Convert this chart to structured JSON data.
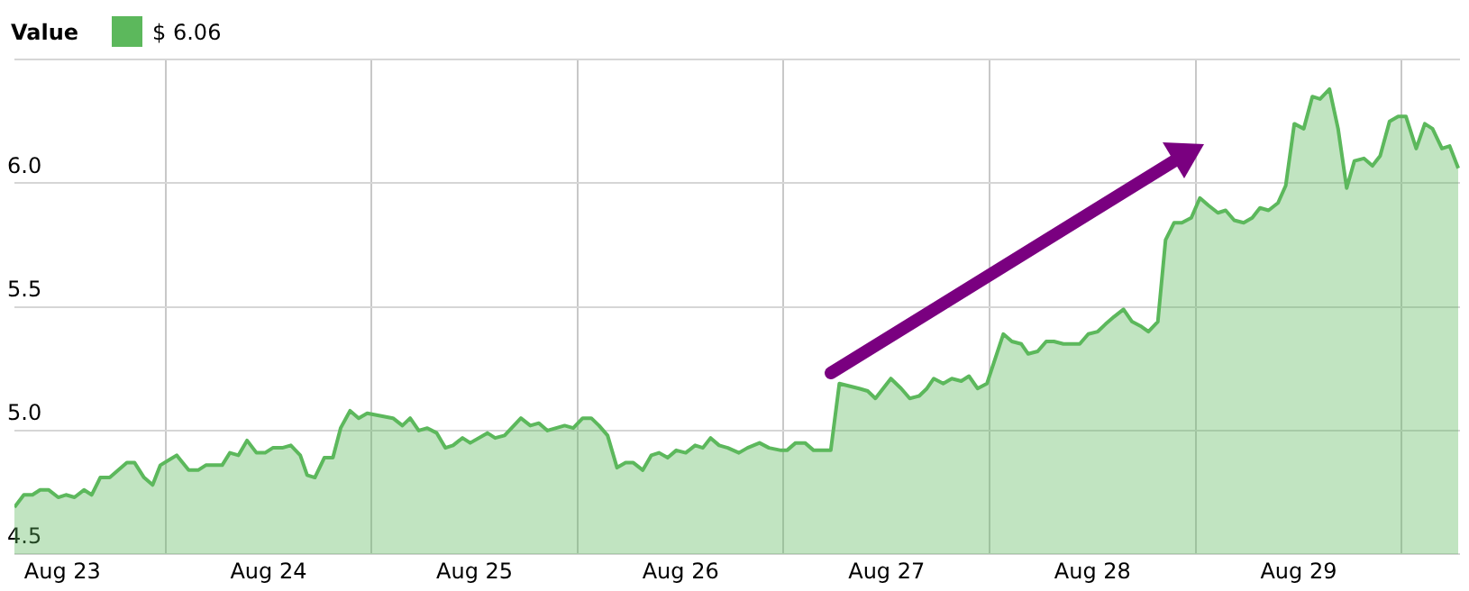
{
  "chart_data": {
    "type": "area",
    "legend_title": "Value",
    "legend": "top left",
    "grid": true,
    "marker": "none",
    "xlim": [
      "--08-23T06:24",
      "--08-30T06:48"
    ],
    "ylim": [
      4.5,
      6.5
    ],
    "yticks": [
      {
        "value": 4.5,
        "label": "4.5"
      },
      {
        "value": 5,
        "label": "5.0"
      },
      {
        "value": 5.5,
        "label": "5.5"
      },
      {
        "value": 6,
        "label": "6.0"
      },
      {
        "value": 6.5,
        "label": null
      }
    ],
    "xticks": [
      {
        "value": "--08-23T12:00",
        "label": "Aug 23"
      },
      {
        "value": "--08-24T00:00",
        "label": null
      },
      {
        "value": "--08-24T12:00",
        "label": "Aug 24"
      },
      {
        "value": "--08-25T00:00",
        "label": null
      },
      {
        "value": "--08-25T12:00",
        "label": "Aug 25"
      },
      {
        "value": "--08-26T00:00",
        "label": null
      },
      {
        "value": "--08-26T12:00",
        "label": "Aug 26"
      },
      {
        "value": "--08-27T00:00",
        "label": null
      },
      {
        "value": "--08-27T12:00",
        "label": "Aug 27"
      },
      {
        "value": "--08-28T00:00",
        "label": null
      },
      {
        "value": "--08-28T12:00",
        "label": "Aug 28"
      },
      {
        "value": "--08-29T00:00",
        "label": null
      },
      {
        "value": "--08-29T12:00",
        "label": "Aug 29"
      },
      {
        "value": "--08-30T00:00",
        "label": null
      }
    ],
    "x": [
      "--08-23T06:24",
      "--08-23T07:30",
      "--08-23T08:30",
      "--08-23T09:24",
      "--08-23T10:24",
      "--08-23T11:30",
      "--08-23T12:24",
      "--08-23T13:24",
      "--08-23T14:30",
      "--08-23T15:24",
      "--08-23T16:24",
      "--08-23T17:30",
      "--08-23T18:30",
      "--08-23T19:30",
      "--08-23T20:24",
      "--08-23T21:30",
      "--08-23T22:30",
      "--08-23T23:24",
      "--08-24T01:18",
      "--08-24T02:42",
      "--08-24T03:48",
      "--08-24T04:42",
      "--08-24T06:36",
      "--08-24T07:30",
      "--08-24T08:30",
      "--08-24T09:30",
      "--08-24T10:36",
      "--08-24T11:36",
      "--08-24T12:30",
      "--08-24T13:36",
      "--08-24T14:36",
      "--08-24T15:42",
      "--08-24T16:30",
      "--08-24T17:24",
      "--08-24T18:30",
      "--08-24T19:30",
      "--08-24T20:24",
      "--08-24T21:30",
      "--08-24T22:30",
      "--08-24T23:30",
      "--08-25T02:30",
      "--08-25T03:36",
      "--08-25T04:30",
      "--08-25T05:30",
      "--08-25T06:30",
      "--08-25T07:36",
      "--08-25T08:36",
      "--08-25T09:30",
      "--08-25T10:36",
      "--08-25T11:30",
      "--08-25T13:30",
      "--08-25T14:24",
      "--08-25T15:30",
      "--08-25T17:24",
      "--08-25T18:30",
      "--08-25T19:30",
      "--08-25T20:30",
      "--08-25T22:30",
      "--08-25T23:30",
      "--08-26T00:36",
      "--08-26T01:36",
      "--08-26T02:30",
      "--08-26T03:30",
      "--08-26T04:36",
      "--08-26T05:36",
      "--08-26T06:30",
      "--08-26T07:36",
      "--08-26T08:36",
      "--08-26T09:30",
      "--08-26T10:30",
      "--08-26T11:30",
      "--08-26T12:36",
      "--08-26T13:42",
      "--08-26T14:36",
      "--08-26T15:30",
      "--08-26T16:30",
      "--08-26T17:30",
      "--08-26T18:48",
      "--08-26T19:48",
      "--08-26T21:12",
      "--08-26T22:18",
      "--08-26T23:42",
      "--08-27T00:24",
      "--08-27T01:24",
      "--08-27T02:30",
      "--08-27T03:30",
      "--08-27T05:30",
      "--08-27T06:30",
      "--08-27T08:48",
      "--08-27T09:48",
      "--08-27T10:42",
      "--08-27T11:36",
      "--08-27T12:30",
      "--08-27T13:42",
      "--08-27T14:42",
      "--08-27T15:48",
      "--08-27T16:42",
      "--08-27T17:30",
      "--08-27T18:36",
      "--08-27T19:36",
      "--08-27T20:42",
      "--08-27T21:36",
      "--08-27T22:36",
      "--08-27T23:42",
      "--08-28T01:36",
      "--08-28T02:36",
      "--08-28T03:42",
      "--08-28T04:30",
      "--08-28T05:36",
      "--08-28T06:36",
      "--08-28T07:30",
      "--08-28T08:36",
      "--08-28T10:30",
      "--08-28T11:30",
      "--08-28T12:36",
      "--08-28T13:30",
      "--08-28T14:30",
      "--08-28T15:36",
      "--08-28T16:36",
      "--08-28T17:42",
      "--08-28T18:30",
      "--08-28T19:36",
      "--08-28T20:30",
      "--08-28T21:30",
      "--08-28T22:24",
      "--08-28T23:30",
      "--08-29T00:30",
      "--08-29T01:30",
      "--08-29T02:36",
      "--08-29T03:30",
      "--08-29T04:30",
      "--08-29T05:36",
      "--08-29T06:36",
      "--08-29T07:30",
      "--08-29T08:30",
      "--08-29T09:36",
      "--08-29T10:30",
      "--08-29T11:30",
      "--08-29T12:36",
      "--08-29T13:36",
      "--08-29T14:30",
      "--08-29T15:36",
      "--08-29T16:36",
      "--08-29T17:36",
      "--08-29T18:30",
      "--08-29T19:36",
      "--08-29T20:36",
      "--08-29T21:30",
      "--08-29T22:36",
      "--08-29T23:36",
      "--08-30T00:30",
      "--08-30T01:42",
      "--08-30T02:42",
      "--08-30T03:36",
      "--08-30T04:42",
      "--08-30T05:36",
      "--08-30T06:36"
    ],
    "series": [
      {
        "name": "$ 6.06",
        "color": "#5cb85c",
        "values": [
          4.69,
          4.74,
          4.74,
          4.76,
          4.76,
          4.73,
          4.74,
          4.73,
          4.76,
          4.74,
          4.81,
          4.81,
          4.84,
          4.87,
          4.87,
          4.81,
          4.78,
          4.86,
          4.9,
          4.84,
          4.84,
          4.86,
          4.86,
          4.91,
          4.9,
          4.96,
          4.91,
          4.91,
          4.93,
          4.93,
          4.94,
          4.9,
          4.82,
          4.81,
          4.89,
          4.89,
          5.01,
          5.08,
          5.05,
          5.07,
          5.05,
          5.02,
          5.05,
          5.0,
          5.01,
          4.99,
          4.93,
          4.94,
          4.97,
          4.95,
          4.99,
          4.97,
          4.98,
          5.05,
          5.02,
          5.03,
          5.0,
          5.02,
          5.01,
          5.05,
          5.05,
          5.02,
          4.98,
          4.85,
          4.87,
          4.87,
          4.84,
          4.9,
          4.91,
          4.89,
          4.92,
          4.91,
          4.94,
          4.93,
          4.97,
          4.94,
          4.93,
          4.91,
          4.93,
          4.95,
          4.93,
          4.92,
          4.92,
          4.95,
          4.95,
          4.92,
          4.92,
          5.19,
          5.17,
          5.16,
          5.13,
          5.17,
          5.21,
          5.17,
          5.13,
          5.14,
          5.17,
          5.21,
          5.19,
          5.21,
          5.2,
          5.22,
          5.17,
          5.19,
          5.39,
          5.36,
          5.35,
          5.31,
          5.32,
          5.36,
          5.36,
          5.35,
          5.35,
          5.39,
          5.4,
          5.43,
          5.46,
          5.49,
          5.44,
          5.42,
          5.4,
          5.44,
          5.77,
          5.84,
          5.84,
          5.86,
          5.94,
          5.91,
          5.88,
          5.89,
          5.85,
          5.84,
          5.86,
          5.9,
          5.89,
          5.92,
          5.99,
          6.24,
          6.22,
          6.35,
          6.34,
          6.38,
          6.22,
          5.98,
          6.09,
          6.1,
          6.07,
          6.11,
          6.25,
          6.27,
          6.27,
          6.14,
          6.24,
          6.22,
          6.14,
          6.15,
          6.06
        ]
      }
    ]
  }
}
